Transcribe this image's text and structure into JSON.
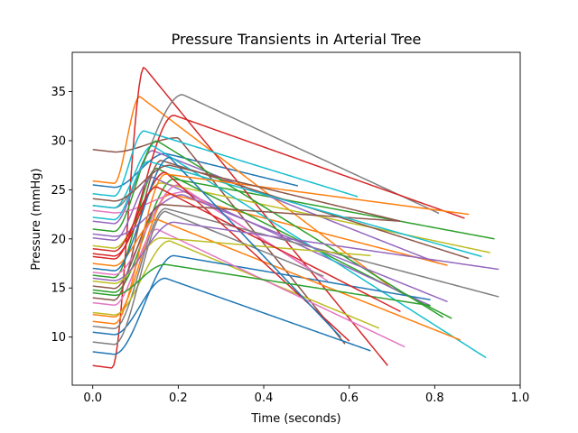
{
  "chart_data": {
    "type": "line",
    "title": "Pressure Transients in Arterial Tree",
    "xlabel": "Time (seconds)",
    "ylabel": "Pressure (mmHg)",
    "xlim": [
      -0.048,
      1.0
    ],
    "ylim": [
      5.1,
      39.0
    ],
    "xticks": [
      0.0,
      0.2,
      0.4,
      0.6,
      0.8,
      1.0
    ],
    "xtick_labels": [
      "0.0",
      "0.2",
      "0.4",
      "0.6",
      "0.8",
      "1.0"
    ],
    "yticks": [
      10,
      15,
      20,
      25,
      30,
      35
    ],
    "ytick_labels": [
      "10",
      "15",
      "20",
      "25",
      "30",
      "35"
    ],
    "grid": false,
    "legend": "none",
    "palette": [
      "#1f77b4",
      "#ff7f0e",
      "#2ca02c",
      "#d62728",
      "#9467bd",
      "#8c564b",
      "#e377c2",
      "#7f7f7f",
      "#bcbd22",
      "#17becf"
    ],
    "series": [
      {
        "start": 25.5,
        "peak": 28.7,
        "end": 25.4,
        "onset": 0.05,
        "tpeak": 0.17,
        "dur": 0.48
      },
      {
        "start": 25.9,
        "peak": 34.5,
        "end": 15.0,
        "onset": 0.05,
        "tpeak": 0.11,
        "dur": 0.7
      },
      {
        "start": 14.8,
        "peak": 26.1,
        "end": 20.0,
        "onset": 0.05,
        "tpeak": 0.19,
        "dur": 0.94
      },
      {
        "start": 7.1,
        "peak": 37.5,
        "end": 7.1,
        "onset": 0.045,
        "tpeak": 0.12,
        "dur": 0.69
      },
      {
        "start": 21.8,
        "peak": 29.0,
        "end": 17.5,
        "onset": 0.05,
        "tpeak": 0.14,
        "dur": 0.81
      },
      {
        "start": 29.1,
        "peak": 30.3,
        "end": 9.3,
        "onset": 0.05,
        "tpeak": 0.2,
        "dur": 0.59
      },
      {
        "start": 22.9,
        "peak": 24.8,
        "end": 16.9,
        "onset": 0.05,
        "tpeak": 0.22,
        "dur": 0.51
      },
      {
        "start": 23.4,
        "peak": 34.7,
        "end": 22.6,
        "onset": 0.05,
        "tpeak": 0.21,
        "dur": 0.81
      },
      {
        "start": 19.3,
        "peak": 25.7,
        "end": 18.6,
        "onset": 0.05,
        "tpeak": 0.16,
        "dur": 0.93
      },
      {
        "start": 24.6,
        "peak": 31.0,
        "end": 24.3,
        "onset": 0.05,
        "tpeak": 0.12,
        "dur": 0.62
      },
      {
        "start": 10.5,
        "peak": 16.0,
        "end": 8.6,
        "onset": 0.05,
        "tpeak": 0.17,
        "dur": 0.65
      },
      {
        "start": 12.3,
        "peak": 24.6,
        "end": 17.3,
        "onset": 0.05,
        "tpeak": 0.18,
        "dur": 0.83
      },
      {
        "start": 16.3,
        "peak": 27.2,
        "end": 11.9,
        "onset": 0.05,
        "tpeak": 0.15,
        "dur": 0.84
      },
      {
        "start": 18.2,
        "peak": 32.6,
        "end": 22.1,
        "onset": 0.05,
        "tpeak": 0.19,
        "dur": 0.87
      },
      {
        "start": 20.1,
        "peak": 26.3,
        "end": 13.2,
        "onset": 0.05,
        "tpeak": 0.14,
        "dur": 0.79
      },
      {
        "start": 14.0,
        "peak": 28.0,
        "end": 18.0,
        "onset": 0.05,
        "tpeak": 0.16,
        "dur": 0.88
      },
      {
        "start": 16.6,
        "peak": 25.5,
        "end": 15.7,
        "onset": 0.05,
        "tpeak": 0.2,
        "dur": 0.55
      },
      {
        "start": 11.1,
        "peak": 23.1,
        "end": 14.1,
        "onset": 0.05,
        "tpeak": 0.17,
        "dur": 0.95
      },
      {
        "start": 12.5,
        "peak": 19.8,
        "end": 10.9,
        "onset": 0.05,
        "tpeak": 0.18,
        "dur": 0.67
      },
      {
        "start": 23.4,
        "peak": 29.5,
        "end": 7.9,
        "onset": 0.05,
        "tpeak": 0.14,
        "dur": 0.92
      },
      {
        "start": 8.5,
        "peak": 18.3,
        "end": 13.8,
        "onset": 0.05,
        "tpeak": 0.19,
        "dur": 0.79
      },
      {
        "start": 17.5,
        "peak": 22.0,
        "end": 9.7,
        "onset": 0.05,
        "tpeak": 0.15,
        "dur": 0.86
      },
      {
        "start": 21.0,
        "peak": 30.0,
        "end": 12.0,
        "onset": 0.05,
        "tpeak": 0.15,
        "dur": 0.82
      },
      {
        "start": 18.5,
        "peak": 26.8,
        "end": 9.6,
        "onset": 0.05,
        "tpeak": 0.17,
        "dur": 0.6
      },
      {
        "start": 20.5,
        "peak": 24.5,
        "end": 13.6,
        "onset": 0.05,
        "tpeak": 0.21,
        "dur": 0.83
      },
      {
        "start": 15.2,
        "peak": 23.5,
        "end": 21.8,
        "onset": 0.05,
        "tpeak": 0.16,
        "dur": 0.72
      },
      {
        "start": 13.5,
        "peak": 21.0,
        "end": 9.0,
        "onset": 0.05,
        "tpeak": 0.15,
        "dur": 0.73
      },
      {
        "start": 9.5,
        "peak": 22.8,
        "end": 16.2,
        "onset": 0.05,
        "tpeak": 0.17,
        "dur": 0.54
      },
      {
        "start": 15.7,
        "peak": 20.1,
        "end": 18.3,
        "onset": 0.05,
        "tpeak": 0.16,
        "dur": 0.65
      },
      {
        "start": 22.2,
        "peak": 27.9,
        "end": 18.2,
        "onset": 0.05,
        "tpeak": 0.13,
        "dur": 0.91
      },
      {
        "start": 17.0,
        "peak": 28.3,
        "end": 10.0,
        "onset": 0.05,
        "tpeak": 0.18,
        "dur": 0.58
      },
      {
        "start": 11.6,
        "peak": 26.6,
        "end": 22.5,
        "onset": 0.05,
        "tpeak": 0.17,
        "dur": 0.88
      },
      {
        "start": 14.5,
        "peak": 17.4,
        "end": 13.2,
        "onset": 0.05,
        "tpeak": 0.17,
        "dur": 0.79
      },
      {
        "start": 19.0,
        "peak": 25.3,
        "end": 12.6,
        "onset": 0.05,
        "tpeak": 0.15,
        "dur": 0.72
      },
      {
        "start": 16.0,
        "peak": 21.7,
        "end": 16.9,
        "onset": 0.05,
        "tpeak": 0.19,
        "dur": 0.95
      },
      {
        "start": 24.1,
        "peak": 27.5,
        "end": 21.8,
        "onset": 0.05,
        "tpeak": 0.18,
        "dur": 0.72
      }
    ]
  }
}
